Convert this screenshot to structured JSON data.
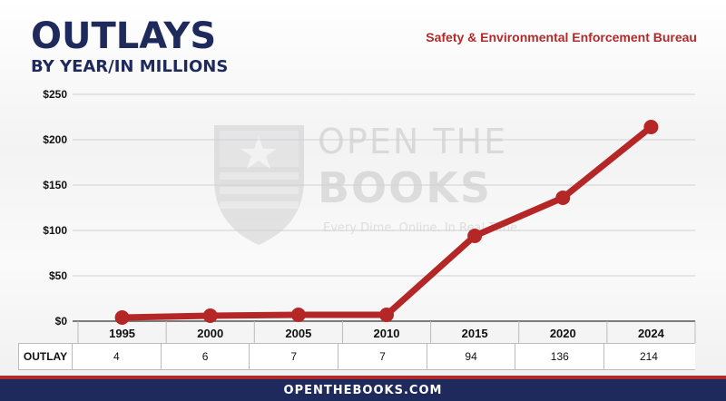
{
  "header": {
    "title": "OUTLAYS",
    "subtitle": "BY YEAR/IN MILLIONS",
    "agency": "Safety & Environmental Enforcement Bureau"
  },
  "watermark": {
    "line1": "OPEN THE",
    "line2": "BOOKS",
    "tagline": "Every Dime. Online. In Real Time."
  },
  "table": {
    "row_label": "OUTLAY"
  },
  "footer": {
    "text": "OPENTHEBOOKS.COM"
  },
  "colors": {
    "navy": "#1d2a5b",
    "red": "#b02a2a",
    "line": "#b52727"
  },
  "chart_data": {
    "type": "line",
    "title": "OUTLAYS",
    "subtitle": "BY YEAR/IN MILLIONS",
    "xlabel": "",
    "ylabel": "",
    "categories": [
      "1995",
      "2000",
      "2005",
      "2010",
      "2015",
      "2020",
      "2024"
    ],
    "values": [
      4,
      6,
      7,
      7,
      94,
      136,
      214
    ],
    "ylim": [
      0,
      250
    ],
    "yticks": [
      0,
      50,
      100,
      150,
      200,
      250
    ],
    "ytick_labels": [
      "$0",
      "$50",
      "$100",
      "$150",
      "$200",
      "$250"
    ],
    "grid": true,
    "legend": "none"
  }
}
